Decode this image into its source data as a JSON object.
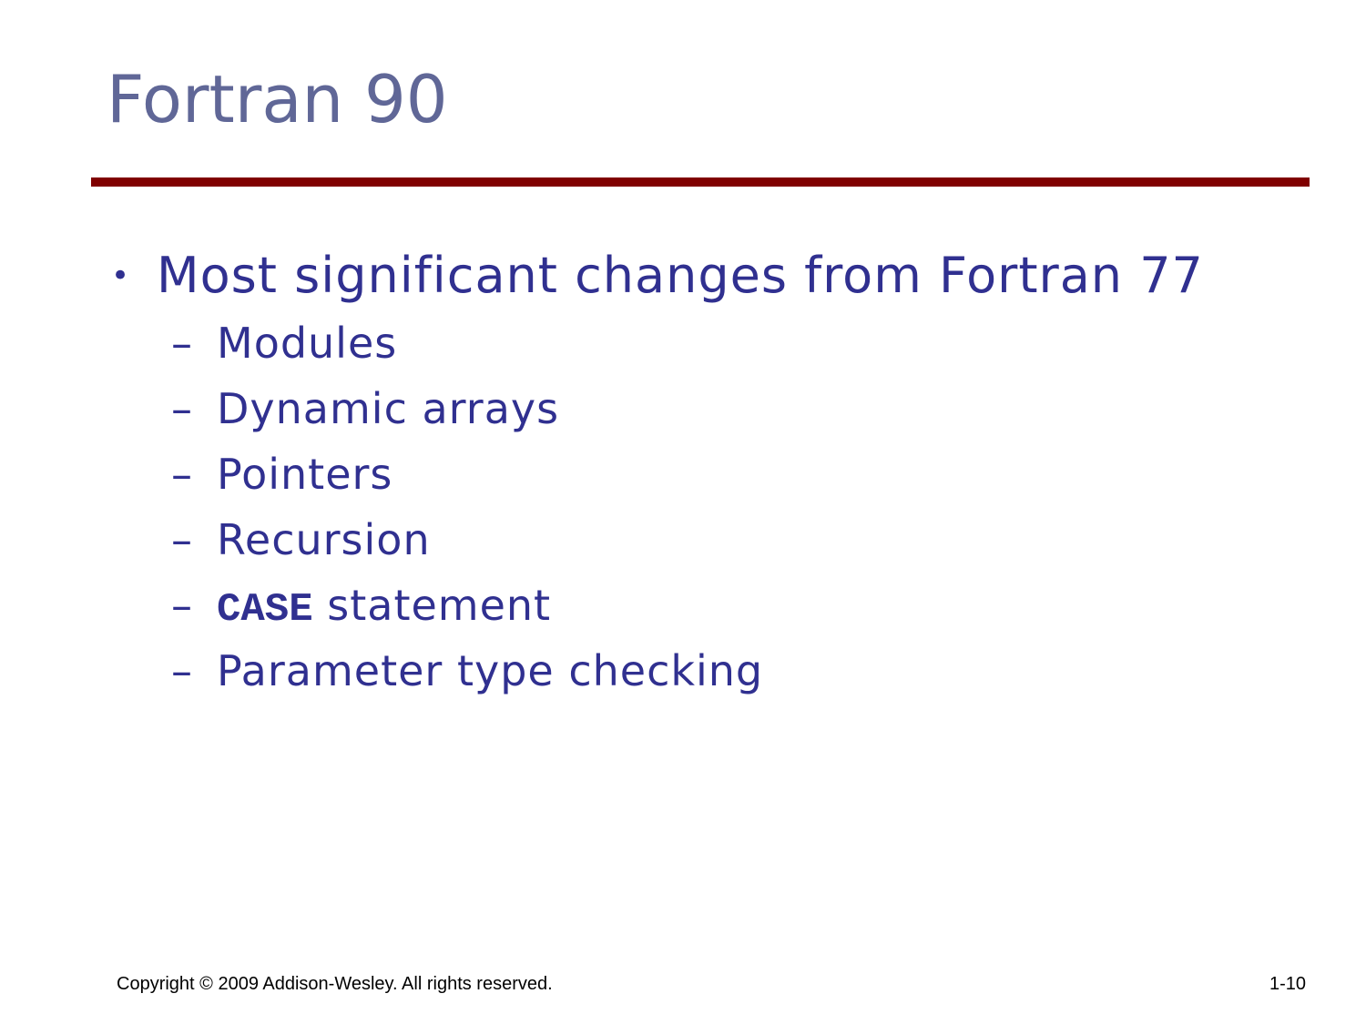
{
  "slide": {
    "title": "Fortran 90",
    "main_bullet": {
      "marker": "•",
      "text": "Most significant changes from Fortran 77"
    },
    "sub_items": [
      {
        "marker": "–",
        "text": "Modules"
      },
      {
        "marker": "–",
        "text": "Dynamic arrays"
      },
      {
        "marker": "–",
        "text": "Pointers"
      },
      {
        "marker": "–",
        "text": "Recursion"
      },
      {
        "marker": "–",
        "code": "CASE",
        "text": " statement"
      },
      {
        "marker": "–",
        "text": "Parameter type checking"
      }
    ]
  },
  "footer": {
    "copyright": "Copyright © 2009 Addison-Wesley. All rights reserved.",
    "page_number": "1-10"
  },
  "colors": {
    "title": "#606797",
    "rule": "#800000",
    "body_text": "#303090"
  }
}
